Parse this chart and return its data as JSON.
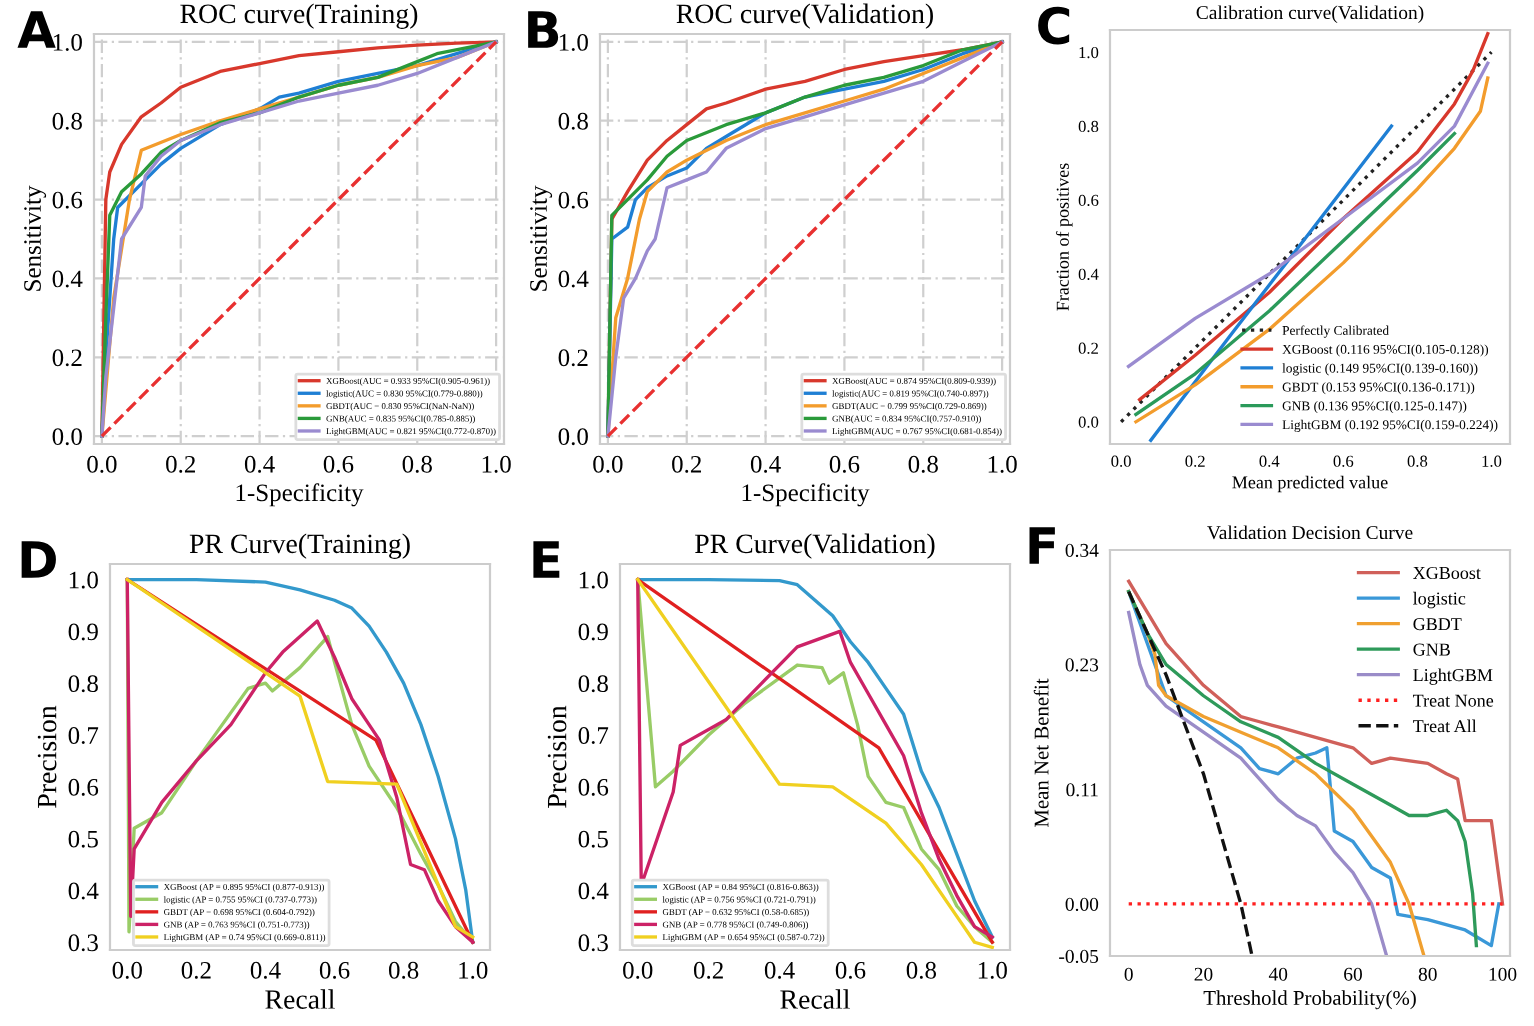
{
  "chart_data": [
    {
      "type": "line",
      "title": "ROC curve(Training)",
      "xlabel": "1-Specificity",
      "ylabel": "Sensitivity",
      "annotations": [
        "A"
      ],
      "grid": true,
      "legend": "bottom right",
      "xlim": [
        -0.02,
        1.02
      ],
      "ylim": [
        -0.02,
        1.02
      ],
      "xticks": [
        {
          "value": 0,
          "label": "0.0"
        },
        {
          "value": 0.2,
          "label": "0.2"
        },
        {
          "value": 0.4,
          "label": "0.4"
        },
        {
          "value": 0.6,
          "label": "0.6"
        },
        {
          "value": 0.8,
          "label": "0.8"
        },
        {
          "value": 1,
          "label": "1.0"
        }
      ],
      "yticks": [
        {
          "value": 0,
          "label": "0.0"
        },
        {
          "value": 0.2,
          "label": "0.2"
        },
        {
          "value": 0.4,
          "label": "0.4"
        },
        {
          "value": 0.6,
          "label": "0.6"
        },
        {
          "value": 0.8,
          "label": "0.8"
        },
        {
          "value": 1,
          "label": "1.0"
        }
      ],
      "series": [
        {
          "name": "XGBoost(AUC = 0.933 95%CI(0.905-0.961))",
          "color": "#d8382c",
          "x": [
            0,
            0.005,
            0.01,
            0.02,
            0.05,
            0.1,
            0.15,
            0.2,
            0.3,
            0.4,
            0.5,
            0.6,
            0.7,
            0.8,
            0.9,
            1
          ],
          "values": [
            0,
            0.3,
            0.6,
            0.67,
            0.74,
            0.81,
            0.845,
            0.885,
            0.925,
            0.945,
            0.965,
            0.975,
            0.985,
            0.992,
            0.997,
            1
          ]
        },
        {
          "name": "logistic(AUC = 0.830 95%CI(0.779-0.880))",
          "color": "#1f7fd4",
          "x": [
            0,
            0.01,
            0.03,
            0.04,
            0.1,
            0.15,
            0.2,
            0.3,
            0.4,
            0.45,
            0.5,
            0.6,
            0.7,
            0.8,
            0.9,
            1
          ],
          "values": [
            0,
            0.2,
            0.5,
            0.58,
            0.64,
            0.69,
            0.73,
            0.79,
            0.83,
            0.86,
            0.87,
            0.9,
            0.92,
            0.94,
            0.97,
            1
          ]
        },
        {
          "name": "GBDT(AUC = 0.830 95%CI(NaN-NaN))",
          "color": "#f39c2c",
          "x": [
            0,
            0.03,
            0.07,
            0.1,
            0.2,
            0.3,
            0.4,
            0.5,
            0.6,
            0.7,
            0.8,
            0.9,
            1
          ],
          "values": [
            0,
            0.35,
            0.6,
            0.725,
            0.765,
            0.8,
            0.83,
            0.86,
            0.89,
            0.91,
            0.94,
            0.96,
            1
          ]
        },
        {
          "name": "GNB(AUC = 0.835 95%CI(0.785-0.885))",
          "color": "#2a9a3a",
          "x": [
            0,
            0.01,
            0.02,
            0.05,
            0.1,
            0.15,
            0.2,
            0.3,
            0.4,
            0.5,
            0.6,
            0.7,
            0.8,
            0.85,
            1
          ],
          "values": [
            0,
            0.3,
            0.56,
            0.62,
            0.665,
            0.72,
            0.75,
            0.795,
            0.82,
            0.86,
            0.89,
            0.91,
            0.95,
            0.97,
            1
          ]
        },
        {
          "name": "LightGBM(AUC = 0.821 95%CI(0.772-0.870))",
          "color": "#9a8bd0",
          "x": [
            0,
            0.01,
            0.05,
            0.1,
            0.11,
            0.15,
            0.2,
            0.3,
            0.4,
            0.5,
            0.6,
            0.7,
            0.8,
            0.9,
            1
          ],
          "values": [
            0,
            0.15,
            0.5,
            0.58,
            0.66,
            0.71,
            0.75,
            0.79,
            0.82,
            0.85,
            0.87,
            0.89,
            0.92,
            0.96,
            1
          ]
        },
        {
          "color": "#e83030",
          "line_style": "dashed",
          "x": [
            0,
            1
          ],
          "values": [
            0,
            1
          ]
        }
      ]
    },
    {
      "type": "line",
      "title": "ROC curve(Validation)",
      "xlabel": "1-Specificity",
      "ylabel": "Sensitivity",
      "annotations": [
        "B"
      ],
      "grid": true,
      "legend": "bottom right",
      "xlim": [
        -0.02,
        1.02
      ],
      "ylim": [
        -0.02,
        1.02
      ],
      "xticks": [
        {
          "value": 0,
          "label": "0.0"
        },
        {
          "value": 0.2,
          "label": "0.2"
        },
        {
          "value": 0.4,
          "label": "0.4"
        },
        {
          "value": 0.6,
          "label": "0.6"
        },
        {
          "value": 0.8,
          "label": "0.8"
        },
        {
          "value": 1,
          "label": "1.0"
        }
      ],
      "yticks": [
        {
          "value": 0,
          "label": "0.0"
        },
        {
          "value": 0.2,
          "label": "0.2"
        },
        {
          "value": 0.4,
          "label": "0.4"
        },
        {
          "value": 0.6,
          "label": "0.6"
        },
        {
          "value": 0.8,
          "label": "0.8"
        },
        {
          "value": 1,
          "label": "1.0"
        }
      ],
      "series": [
        {
          "name": "XGBoost(AUC = 0.874 95%CI(0.809-0.939))",
          "color": "#d8382c",
          "x": [
            0,
            0.01,
            0.05,
            0.1,
            0.15,
            0.2,
            0.25,
            0.3,
            0.4,
            0.5,
            0.6,
            0.7,
            0.8,
            0.9,
            1
          ],
          "values": [
            0,
            0.55,
            0.62,
            0.7,
            0.75,
            0.79,
            0.83,
            0.845,
            0.88,
            0.9,
            0.93,
            0.95,
            0.965,
            0.98,
            1
          ]
        },
        {
          "name": "logistic(AUC = 0.819 95%CI(0.740-0.897))",
          "color": "#1f7fd4",
          "x": [
            0,
            0.01,
            0.05,
            0.07,
            0.1,
            0.15,
            0.2,
            0.25,
            0.3,
            0.4,
            0.5,
            0.6,
            0.7,
            0.8,
            0.9,
            1
          ],
          "values": [
            0,
            0.5,
            0.53,
            0.6,
            0.63,
            0.66,
            0.68,
            0.73,
            0.76,
            0.82,
            0.86,
            0.88,
            0.9,
            0.93,
            0.97,
            1
          ]
        },
        {
          "name": "GBDT(AUC = 0.799 95%CI(0.729-0.869))",
          "color": "#f39c2c",
          "x": [
            0,
            0.02,
            0.05,
            0.08,
            0.1,
            0.15,
            0.2,
            0.3,
            0.4,
            0.5,
            0.6,
            0.7,
            0.8,
            0.9,
            1
          ],
          "values": [
            0,
            0.3,
            0.4,
            0.55,
            0.62,
            0.67,
            0.7,
            0.75,
            0.79,
            0.82,
            0.85,
            0.88,
            0.92,
            0.96,
            1
          ]
        },
        {
          "name": "GNB(AUC = 0.834 95%CI(0.757-0.910))",
          "color": "#2a9a3a",
          "x": [
            0,
            0.01,
            0.05,
            0.1,
            0.15,
            0.2,
            0.3,
            0.4,
            0.5,
            0.6,
            0.7,
            0.8,
            0.9,
            1
          ],
          "values": [
            0,
            0.56,
            0.6,
            0.65,
            0.71,
            0.75,
            0.79,
            0.82,
            0.86,
            0.89,
            0.91,
            0.94,
            0.98,
            1
          ]
        },
        {
          "name": "LightGBM(AUC = 0.767 95%CI(0.681-0.854))",
          "color": "#9a8bd0",
          "x": [
            0,
            0.02,
            0.04,
            0.07,
            0.1,
            0.12,
            0.15,
            0.2,
            0.25,
            0.3,
            0.4,
            0.5,
            0.6,
            0.7,
            0.8,
            0.9,
            1
          ],
          "values": [
            0,
            0.2,
            0.35,
            0.4,
            0.47,
            0.5,
            0.63,
            0.65,
            0.67,
            0.73,
            0.78,
            0.81,
            0.84,
            0.87,
            0.9,
            0.95,
            1
          ]
        },
        {
          "color": "#e83030",
          "line_style": "dashed",
          "x": [
            0,
            1
          ],
          "values": [
            0,
            1
          ]
        }
      ]
    },
    {
      "type": "line",
      "title": "Calibration curve(Validation)",
      "xlabel": "Mean predicted value",
      "ylabel": "Fraction of positives",
      "annotations": [
        "C"
      ],
      "legend": "bottom right",
      "xlim": [
        -0.03,
        1.05
      ],
      "ylim": [
        -0.06,
        1.06
      ],
      "xticks": [
        {
          "value": 0,
          "label": "0.0"
        },
        {
          "value": 0.2,
          "label": "0.2"
        },
        {
          "value": 0.4,
          "label": "0.4"
        },
        {
          "value": 0.6,
          "label": "0.6"
        },
        {
          "value": 0.8,
          "label": "0.8"
        },
        {
          "value": 1,
          "label": "1.0"
        }
      ],
      "yticks": [
        {
          "value": 0,
          "label": "0.0"
        },
        {
          "value": 0.2,
          "label": "0.2"
        },
        {
          "value": 0.4,
          "label": "0.4"
        },
        {
          "value": 0.6,
          "label": "0.6"
        },
        {
          "value": 0.8,
          "label": "0.8"
        },
        {
          "value": 1,
          "label": "1.0"
        }
      ],
      "series": [
        {
          "name": "Perfectly Calibrated",
          "color": "#222222",
          "line_style": "dotted",
          "x": [
            0,
            1
          ],
          "values": [
            0,
            1
          ]
        },
        {
          "name": "XGBoost (0.116 95%CI(0.105-0.128))",
          "color": "#d8382c",
          "x": [
            0.05,
            0.2,
            0.4,
            0.6,
            0.8,
            0.9,
            0.95,
            0.99
          ],
          "values": [
            0.06,
            0.18,
            0.35,
            0.55,
            0.73,
            0.86,
            0.95,
            1.05
          ]
        },
        {
          "name": "logistic (0.149 95%CI(0.139-0.160))",
          "color": "#1f7fd4",
          "x": [
            0.08,
            0.3,
            0.5,
            0.73
          ],
          "values": [
            -0.05,
            0.24,
            0.5,
            0.8
          ]
        },
        {
          "name": "GBDT (0.153 95%CI(0.136-0.171))",
          "color": "#f39c2c",
          "x": [
            0.04,
            0.2,
            0.4,
            0.6,
            0.8,
            0.9,
            0.97,
            0.99
          ],
          "values": [
            0,
            0.1,
            0.25,
            0.43,
            0.63,
            0.74,
            0.84,
            0.93
          ]
        },
        {
          "name": "GNB (0.136 95%CI(0.125-0.147))",
          "color": "#2a9a5a",
          "x": [
            0.04,
            0.2,
            0.4,
            0.6,
            0.8,
            0.9
          ],
          "values": [
            0.02,
            0.13,
            0.3,
            0.49,
            0.68,
            0.78
          ]
        },
        {
          "name": "LightGBM (0.192 95%CI(0.159-0.224))",
          "color": "#9a8bd0",
          "x": [
            0.02,
            0.2,
            0.4,
            0.6,
            0.8,
            0.9,
            0.99
          ],
          "values": [
            0.15,
            0.28,
            0.4,
            0.55,
            0.7,
            0.8,
            0.97
          ]
        }
      ]
    },
    {
      "type": "line",
      "title": "PR Curve(Training)",
      "xlabel": "Recall",
      "ylabel": "Precision",
      "annotations": [
        "D"
      ],
      "legend": "bottom left",
      "xlim": [
        -0.05,
        1.05
      ],
      "ylim": [
        0.285,
        1.03
      ],
      "xticks": [
        {
          "value": 0,
          "label": "0.0"
        },
        {
          "value": 0.2,
          "label": "0.2"
        },
        {
          "value": 0.4,
          "label": "0.4"
        },
        {
          "value": 0.6,
          "label": "0.6"
        },
        {
          "value": 0.8,
          "label": "0.8"
        },
        {
          "value": 1,
          "label": "1.0"
        }
      ],
      "yticks": [
        {
          "value": 0.3,
          "label": "0.3"
        },
        {
          "value": 0.4,
          "label": "0.4"
        },
        {
          "value": 0.5,
          "label": "0.5"
        },
        {
          "value": 0.6,
          "label": "0.6"
        },
        {
          "value": 0.7,
          "label": "0.7"
        },
        {
          "value": 0.8,
          "label": "0.8"
        },
        {
          "value": 0.9,
          "label": "0.9"
        },
        {
          "value": 1,
          "label": "1.0"
        }
      ],
      "series": [
        {
          "name": "XGBoost (AP = 0.895 95%CI (0.877-0.913))",
          "color": "#3399cc",
          "x": [
            0,
            0.2,
            0.4,
            0.5,
            0.6,
            0.65,
            0.7,
            0.75,
            0.8,
            0.85,
            0.9,
            0.95,
            0.98,
            1
          ],
          "values": [
            1,
            1,
            0.995,
            0.98,
            0.96,
            0.945,
            0.91,
            0.86,
            0.8,
            0.72,
            0.62,
            0.5,
            0.4,
            0.3
          ]
        },
        {
          "name": "logistic (AP = 0.755 95%CI (0.737-0.773))",
          "color": "#99cc66",
          "x": [
            0,
            0.005,
            0.02,
            0.1,
            0.2,
            0.35,
            0.4,
            0.42,
            0.5,
            0.58,
            0.6,
            0.65,
            0.7,
            0.78,
            0.85,
            0.9,
            0.95,
            1
          ],
          "values": [
            1,
            0.32,
            0.52,
            0.55,
            0.65,
            0.79,
            0.8,
            0.785,
            0.83,
            0.89,
            0.84,
            0.72,
            0.64,
            0.56,
            0.47,
            0.41,
            0.34,
            0.3
          ]
        },
        {
          "name": "GBDT (AP = 0.698 95%CI (0.604-0.792))",
          "color": "#e02020",
          "x": [
            0,
            0.72,
            1
          ],
          "values": [
            1,
            0.69,
            0.3
          ]
        },
        {
          "name": "GNB (AP = 0.763 95%CI (0.751-0.773))",
          "color": "#cc2266",
          "x": [
            0,
            0.01,
            0.02,
            0.1,
            0.2,
            0.3,
            0.4,
            0.45,
            0.55,
            0.6,
            0.65,
            0.7,
            0.73,
            0.78,
            0.82,
            0.86,
            0.9,
            0.95,
            1
          ],
          "values": [
            1,
            0.35,
            0.48,
            0.57,
            0.65,
            0.72,
            0.82,
            0.86,
            0.92,
            0.85,
            0.77,
            0.72,
            0.69,
            0.58,
            0.45,
            0.44,
            0.38,
            0.33,
            0.3
          ]
        },
        {
          "name": "LightGBM (AP = 0.74 95%CI (0.669-0.811))",
          "color": "#f0d020",
          "x": [
            0,
            0.5,
            0.58,
            0.78,
            0.95,
            1
          ],
          "values": [
            1,
            0.775,
            0.61,
            0.605,
            0.33,
            0.31
          ]
        }
      ]
    },
    {
      "type": "line",
      "title": "PR Curve(Validation)",
      "xlabel": "Recall",
      "ylabel": "Precision",
      "annotations": [
        "E"
      ],
      "legend": "bottom left",
      "xlim": [
        -0.05,
        1.05
      ],
      "ylim": [
        0.285,
        1.03
      ],
      "xticks": [
        {
          "value": 0,
          "label": "0.0"
        },
        {
          "value": 0.2,
          "label": "0.2"
        },
        {
          "value": 0.4,
          "label": "0.4"
        },
        {
          "value": 0.6,
          "label": "0.6"
        },
        {
          "value": 0.8,
          "label": "0.8"
        },
        {
          "value": 1,
          "label": "1.0"
        }
      ],
      "yticks": [
        {
          "value": 0.3,
          "label": "0.3"
        },
        {
          "value": 0.4,
          "label": "0.4"
        },
        {
          "value": 0.5,
          "label": "0.5"
        },
        {
          "value": 0.6,
          "label": "0.6"
        },
        {
          "value": 0.7,
          "label": "0.7"
        },
        {
          "value": 0.8,
          "label": "0.8"
        },
        {
          "value": 0.9,
          "label": "0.9"
        },
        {
          "value": 1,
          "label": "1.0"
        }
      ],
      "series": [
        {
          "name": "XGBoost (AP = 0.84 95%CI (0.816-0.863))",
          "color": "#3399cc",
          "x": [
            0,
            0.2,
            0.4,
            0.45,
            0.5,
            0.55,
            0.6,
            0.65,
            0.7,
            0.75,
            0.8,
            0.85,
            0.9,
            0.95,
            1
          ],
          "values": [
            1,
            1,
            0.998,
            0.99,
            0.96,
            0.93,
            0.88,
            0.84,
            0.79,
            0.74,
            0.63,
            0.56,
            0.47,
            0.38,
            0.31
          ]
        },
        {
          "name": "logistic (AP = 0.756 95%CI (0.721-0.791))",
          "color": "#99cc66",
          "x": [
            0,
            0.05,
            0.1,
            0.2,
            0.3,
            0.45,
            0.52,
            0.54,
            0.58,
            0.62,
            0.65,
            0.7,
            0.75,
            0.8,
            0.85,
            0.9,
            0.95,
            1
          ],
          "values": [
            1,
            0.6,
            0.63,
            0.7,
            0.76,
            0.835,
            0.83,
            0.8,
            0.82,
            0.72,
            0.62,
            0.57,
            0.56,
            0.48,
            0.44,
            0.37,
            0.33,
            0.3
          ]
        },
        {
          "name": "GBDT (AP = 0.632 95%CI (0.58-0.685))",
          "color": "#e02020",
          "x": [
            0,
            0.68,
            1
          ],
          "values": [
            1,
            0.675,
            0.3
          ]
        },
        {
          "name": "GNB (AP = 0.778 95%CI (0.749-0.806))",
          "color": "#cc2266",
          "x": [
            0,
            0.01,
            0.1,
            0.12,
            0.25,
            0.35,
            0.45,
            0.57,
            0.6,
            0.65,
            0.7,
            0.75,
            0.8,
            0.85,
            0.9,
            0.95,
            1
          ],
          "values": [
            1,
            0.41,
            0.59,
            0.68,
            0.73,
            0.8,
            0.87,
            0.9,
            0.84,
            0.78,
            0.72,
            0.66,
            0.55,
            0.46,
            0.39,
            0.33,
            0.31
          ]
        },
        {
          "name": "LightGBM (AP = 0.654 95%CI (0.587-0.72))",
          "color": "#f0d020",
          "x": [
            0,
            0.4,
            0.55,
            0.7,
            0.8,
            0.9,
            0.95,
            1
          ],
          "values": [
            1,
            0.605,
            0.6,
            0.53,
            0.45,
            0.35,
            0.3,
            0.29
          ]
        }
      ]
    },
    {
      "type": "line",
      "title": "Validation Decision Curve",
      "xlabel": "Threshold Probability(%)",
      "ylabel": "Mean Net Benefit",
      "annotations": [
        "F"
      ],
      "legend": "top right",
      "xlim": [
        -5,
        102
      ],
      "ylim": [
        -0.05,
        0.34
      ],
      "xticks": [
        0,
        20,
        40,
        60,
        80,
        100
      ],
      "yticks": [
        {
          "value": -0.05,
          "label": "-0.05"
        },
        {
          "value": 0,
          "label": "0.00"
        },
        {
          "value": 0.11,
          "label": "0.11"
        },
        {
          "value": 0.23,
          "label": "0.23"
        },
        {
          "value": 0.34,
          "label": "0.34"
        }
      ],
      "series": [
        {
          "name": "XGBoost",
          "color": "#d0605a",
          "x": [
            0,
            5,
            10,
            20,
            30,
            35,
            40,
            50,
            60,
            65,
            70,
            80,
            85,
            88,
            90,
            95,
            97,
            100
          ],
          "values": [
            0.31,
            0.28,
            0.25,
            0.21,
            0.18,
            0.175,
            0.17,
            0.16,
            0.15,
            0.135,
            0.14,
            0.135,
            0.125,
            0.12,
            0.08,
            0.08,
            0.08,
            0.0
          ]
        },
        {
          "name": "logistic",
          "color": "#3a98d8",
          "x": [
            0,
            5,
            10,
            20,
            30,
            35,
            40,
            45,
            50,
            53,
            55,
            60,
            65,
            70,
            72,
            80,
            90,
            97,
            99
          ],
          "values": [
            0.3,
            0.25,
            0.2,
            0.175,
            0.15,
            0.13,
            0.125,
            0.14,
            0.145,
            0.15,
            0.07,
            0.06,
            0.035,
            0.025,
            -0.01,
            -0.015,
            -0.025,
            -0.04,
            0.0
          ]
        },
        {
          "name": "GBDT",
          "color": "#f0a030",
          "x": [
            0,
            5,
            7,
            8,
            10,
            20,
            30,
            40,
            50,
            60,
            70,
            75,
            79
          ],
          "values": [
            0.3,
            0.26,
            0.24,
            0.21,
            0.2,
            0.18,
            0.165,
            0.15,
            0.125,
            0.09,
            0.04,
            0.0,
            -0.05
          ]
        },
        {
          "name": "GNB",
          "color": "#2e9a5a",
          "x": [
            0,
            5,
            10,
            20,
            30,
            40,
            50,
            60,
            70,
            75,
            80,
            85,
            88,
            90,
            92,
            93
          ],
          "values": [
            0.3,
            0.26,
            0.23,
            0.2,
            0.175,
            0.16,
            0.135,
            0.115,
            0.095,
            0.085,
            0.085,
            0.09,
            0.08,
            0.06,
            0.01,
            -0.04
          ]
        },
        {
          "name": "LightGBM",
          "color": "#9a8cc8",
          "x": [
            0,
            3,
            5,
            10,
            20,
            30,
            40,
            45,
            50,
            55,
            60,
            65,
            69
          ],
          "values": [
            0.28,
            0.23,
            0.21,
            0.19,
            0.165,
            0.14,
            0.1,
            0.085,
            0.075,
            0.05,
            0.03,
            0.0,
            -0.05
          ]
        },
        {
          "name": "Treat None",
          "color": "#ff2020",
          "line_style": "dotted",
          "x": [
            0,
            100
          ],
          "values": [
            0,
            0
          ]
        },
        {
          "name": "Treat All",
          "color": "#111111",
          "line_style": "dashed",
          "x": [
            0,
            10,
            20,
            30,
            33
          ],
          "values": [
            0.3,
            0.22,
            0.125,
            0.0,
            -0.05
          ]
        }
      ]
    }
  ]
}
